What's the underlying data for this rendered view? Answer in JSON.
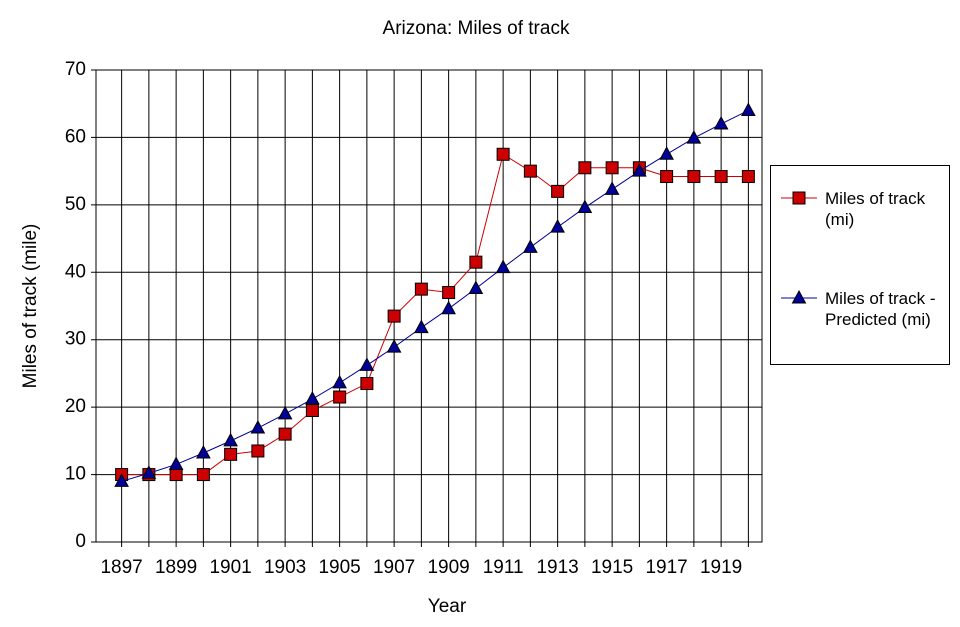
{
  "chart_data": {
    "type": "line",
    "title": "Arizona: Miles of track",
    "x_label": "Year",
    "y_label": "Miles of track (mile)",
    "categories": [
      "1897",
      null,
      "1899",
      null,
      "1901",
      null,
      "1903",
      null,
      "1905",
      null,
      "1907",
      null,
      "1909",
      null,
      "1911",
      null,
      "1913",
      null,
      "1915",
      null,
      "1917",
      null,
      "1919",
      null
    ],
    "series": [
      {
        "name": "Miles of track (mi)",
        "color": "#cc0000",
        "marker": "square",
        "values": [
          10,
          10,
          10,
          10,
          13,
          13.5,
          16,
          19.5,
          21.5,
          23.5,
          33.5,
          37.5,
          37,
          41.5,
          57.5,
          55,
          52,
          55.5,
          55.5,
          55.5,
          54.2,
          54.2,
          54.2,
          54.2
        ]
      },
      {
        "name": "Miles of track - Predicted (mi)",
        "color": "#000099",
        "marker": "triangle",
        "values": [
          9,
          10.2,
          11.5,
          13.2,
          15,
          16.9,
          19,
          21.2,
          23.6,
          26.2,
          28.9,
          31.8,
          34.6,
          37.6,
          40.7,
          43.7,
          46.7,
          49.6,
          52.3,
          55,
          57.5,
          59.9,
          62,
          64
        ]
      }
    ],
    "ylim": [
      0,
      70
    ],
    "yticks": [
      0,
      10,
      20,
      30,
      40,
      50,
      60,
      70
    ],
    "grid": true,
    "legend": "right"
  }
}
